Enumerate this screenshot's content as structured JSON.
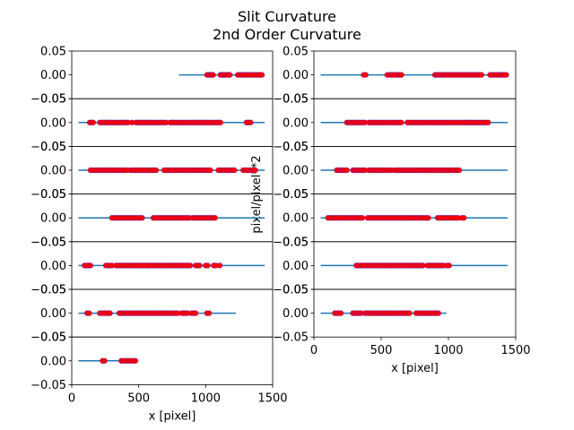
{
  "titles": {
    "line1": "Slit Curvature",
    "line2": "2nd Order Curvature"
  },
  "ylabel": "pixel/pixel**2",
  "colors": {
    "line": "#1f77b4",
    "marker_edge": "#0000ff",
    "marker_fill": "#ff0000",
    "axes": "#000000",
    "background": "#ffffff"
  },
  "chart_data": [
    {
      "type": "scatter",
      "column": "left",
      "x_ticks": [
        "0",
        "500",
        "1000",
        "1500"
      ],
      "xlabel": "x [pixel]",
      "xlim": [
        0,
        1500
      ],
      "ylim": [
        -0.05,
        0.05
      ],
      "y_ticks": [
        "0.05",
        "0.00",
        "−0.05"
      ],
      "panels": [
        {
          "line": [
            800,
            1440
          ],
          "points": [
            1010,
            1025,
            1035,
            1045,
            1055,
            1110,
            1120,
            1130,
            1140,
            1155,
            1170,
            1180,
            1240,
            1255,
            1270,
            1285,
            1300,
            1315,
            1330,
            1345,
            1360,
            1375,
            1390,
            1405,
            1420
          ]
        },
        {
          "line": [
            50,
            1440
          ],
          "points": [
            135,
            150,
            160,
            210,
            225,
            240,
            255,
            270,
            285,
            300,
            315,
            330,
            345,
            360,
            375,
            390,
            405,
            420,
            450,
            480,
            495,
            510,
            525,
            540,
            555,
            570,
            585,
            600,
            615,
            630,
            645,
            660,
            675,
            690,
            705,
            735,
            750,
            765,
            780,
            795,
            810,
            825,
            840,
            855,
            870,
            885,
            900,
            915,
            930,
            945,
            960,
            975,
            990,
            1005,
            1020,
            1035,
            1050,
            1065,
            1080,
            1095,
            1110,
            1305,
            1320,
            1335
          ]
        },
        {
          "line": [
            50,
            1440
          ],
          "points": [
            140,
            155,
            170,
            185,
            200,
            215,
            230,
            245,
            260,
            275,
            290,
            305,
            320,
            335,
            350,
            365,
            380,
            395,
            410,
            435,
            450,
            465,
            480,
            495,
            510,
            525,
            540,
            555,
            570,
            585,
            600,
            615,
            630,
            690,
            705,
            720,
            735,
            750,
            765,
            780,
            795,
            810,
            825,
            840,
            855,
            870,
            885,
            900,
            915,
            930,
            945,
            960,
            975,
            990,
            1005,
            1020,
            1035,
            1095,
            1110,
            1125,
            1140,
            1155,
            1170,
            1185,
            1200,
            1215,
            1280,
            1295,
            1310,
            1325,
            1340,
            1355,
            1370
          ]
        },
        {
          "line": [
            50,
            1440
          ],
          "points": [
            300,
            315,
            330,
            345,
            360,
            375,
            390,
            405,
            420,
            435,
            450,
            465,
            480,
            495,
            510,
            525,
            610,
            625,
            640,
            655,
            670,
            685,
            700,
            715,
            730,
            745,
            760,
            775,
            790,
            805,
            820,
            835,
            850,
            865,
            880,
            905,
            920,
            935,
            950,
            965,
            980,
            995,
            1010,
            1025,
            1040,
            1055,
            1070
          ]
        },
        {
          "line": [
            50,
            1440
          ],
          "points": [
            95,
            110,
            125,
            140,
            255,
            270,
            285,
            300,
            330,
            345,
            360,
            375,
            390,
            405,
            420,
            435,
            450,
            465,
            480,
            495,
            510,
            525,
            540,
            555,
            570,
            585,
            600,
            615,
            630,
            645,
            660,
            675,
            690,
            705,
            720,
            735,
            750,
            765,
            780,
            795,
            810,
            825,
            840,
            855,
            870,
            885,
            925,
            940,
            955,
            1000,
            1015,
            1060,
            1075,
            1105
          ]
        },
        {
          "line": [
            50,
            1225
          ],
          "points": [
            115,
            130,
            210,
            225,
            240,
            255,
            270,
            285,
            355,
            370,
            385,
            400,
            415,
            430,
            445,
            460,
            475,
            490,
            505,
            520,
            535,
            550,
            565,
            580,
            595,
            610,
            625,
            640,
            655,
            670,
            685,
            700,
            715,
            730,
            745,
            760,
            775,
            790,
            820,
            835,
            850,
            865,
            895,
            910,
            925,
            1010,
            1025
          ]
        },
        {
          "line": [
            50,
            480
          ],
          "points": [
            230,
            245,
            370,
            385,
            400,
            415,
            430,
            445,
            460,
            475
          ]
        }
      ]
    },
    {
      "type": "scatter",
      "column": "right",
      "x_ticks": [
        "0",
        "500",
        "1000",
        "1500"
      ],
      "xlabel": "x [pixel]",
      "xlim": [
        0,
        1500
      ],
      "ylim": [
        -0.05,
        0.05
      ],
      "y_ticks": [
        "0.05",
        "0.00",
        "−0.05"
      ],
      "panels": [
        {
          "line": [
            50,
            1440
          ],
          "points": [
            370,
            385,
            545,
            560,
            575,
            590,
            605,
            620,
            635,
            650,
            900,
            915,
            930,
            945,
            960,
            975,
            990,
            1005,
            1020,
            1035,
            1050,
            1065,
            1080,
            1095,
            1110,
            1125,
            1140,
            1155,
            1170,
            1185,
            1200,
            1215,
            1230,
            1245,
            1310,
            1325,
            1340,
            1355,
            1370,
            1385,
            1400,
            1415,
            1430
          ]
        },
        {
          "line": [
            50,
            1440
          ],
          "points": [
            245,
            260,
            275,
            290,
            305,
            320,
            335,
            350,
            365,
            380,
            410,
            425,
            440,
            455,
            470,
            485,
            500,
            515,
            530,
            545,
            560,
            575,
            590,
            605,
            620,
            635,
            650,
            695,
            710,
            725,
            740,
            755,
            770,
            785,
            800,
            815,
            830,
            845,
            860,
            875,
            890,
            905,
            920,
            935,
            950,
            965,
            980,
            995,
            1010,
            1025,
            1040,
            1055,
            1070,
            1085,
            1100,
            1115,
            1130,
            1145,
            1160,
            1175,
            1190,
            1205,
            1220,
            1235,
            1250,
            1265,
            1280,
            1295
          ]
        },
        {
          "line": [
            50,
            1440
          ],
          "points": [
            170,
            185,
            200,
            215,
            230,
            245,
            290,
            305,
            320,
            335,
            350,
            365,
            380,
            410,
            425,
            440,
            455,
            470,
            485,
            500,
            515,
            530,
            545,
            560,
            575,
            600,
            615,
            630,
            645,
            660,
            675,
            690,
            705,
            720,
            735,
            750,
            765,
            780,
            795,
            810,
            825,
            840,
            855,
            870,
            885,
            900,
            915,
            930,
            945,
            960,
            975,
            990,
            1005,
            1020,
            1035,
            1050,
            1065,
            1080
          ]
        },
        {
          "line": [
            50,
            1440
          ],
          "points": [
            105,
            120,
            135,
            150,
            165,
            180,
            195,
            210,
            225,
            240,
            255,
            270,
            285,
            300,
            315,
            330,
            345,
            360,
            400,
            415,
            430,
            445,
            460,
            475,
            490,
            505,
            520,
            535,
            550,
            565,
            580,
            595,
            610,
            625,
            640,
            655,
            670,
            685,
            700,
            715,
            730,
            745,
            760,
            775,
            790,
            805,
            820,
            835,
            850,
            920,
            935,
            950,
            965,
            980,
            995,
            1010,
            1025,
            1040,
            1055,
            1070,
            1100,
            1115
          ]
        },
        {
          "line": [
            50,
            1440
          ],
          "points": [
            315,
            330,
            345,
            360,
            375,
            390,
            405,
            420,
            435,
            450,
            465,
            480,
            495,
            510,
            525,
            540,
            555,
            570,
            585,
            600,
            615,
            630,
            645,
            660,
            675,
            690,
            705,
            720,
            735,
            750,
            765,
            780,
            795,
            810,
            845,
            860,
            875,
            890,
            905,
            920,
            935,
            950,
            965,
            990,
            1005
          ]
        },
        {
          "line": [
            50,
            985
          ],
          "points": [
            155,
            170,
            185,
            200,
            290,
            305,
            320,
            335,
            350,
            380,
            395,
            410,
            425,
            440,
            455,
            470,
            485,
            500,
            515,
            530,
            545,
            560,
            575,
            590,
            605,
            620,
            635,
            650,
            665,
            680,
            695,
            710,
            760,
            775,
            790,
            805,
            820,
            835,
            850,
            865,
            880,
            895,
            910,
            925
          ]
        }
      ]
    }
  ]
}
